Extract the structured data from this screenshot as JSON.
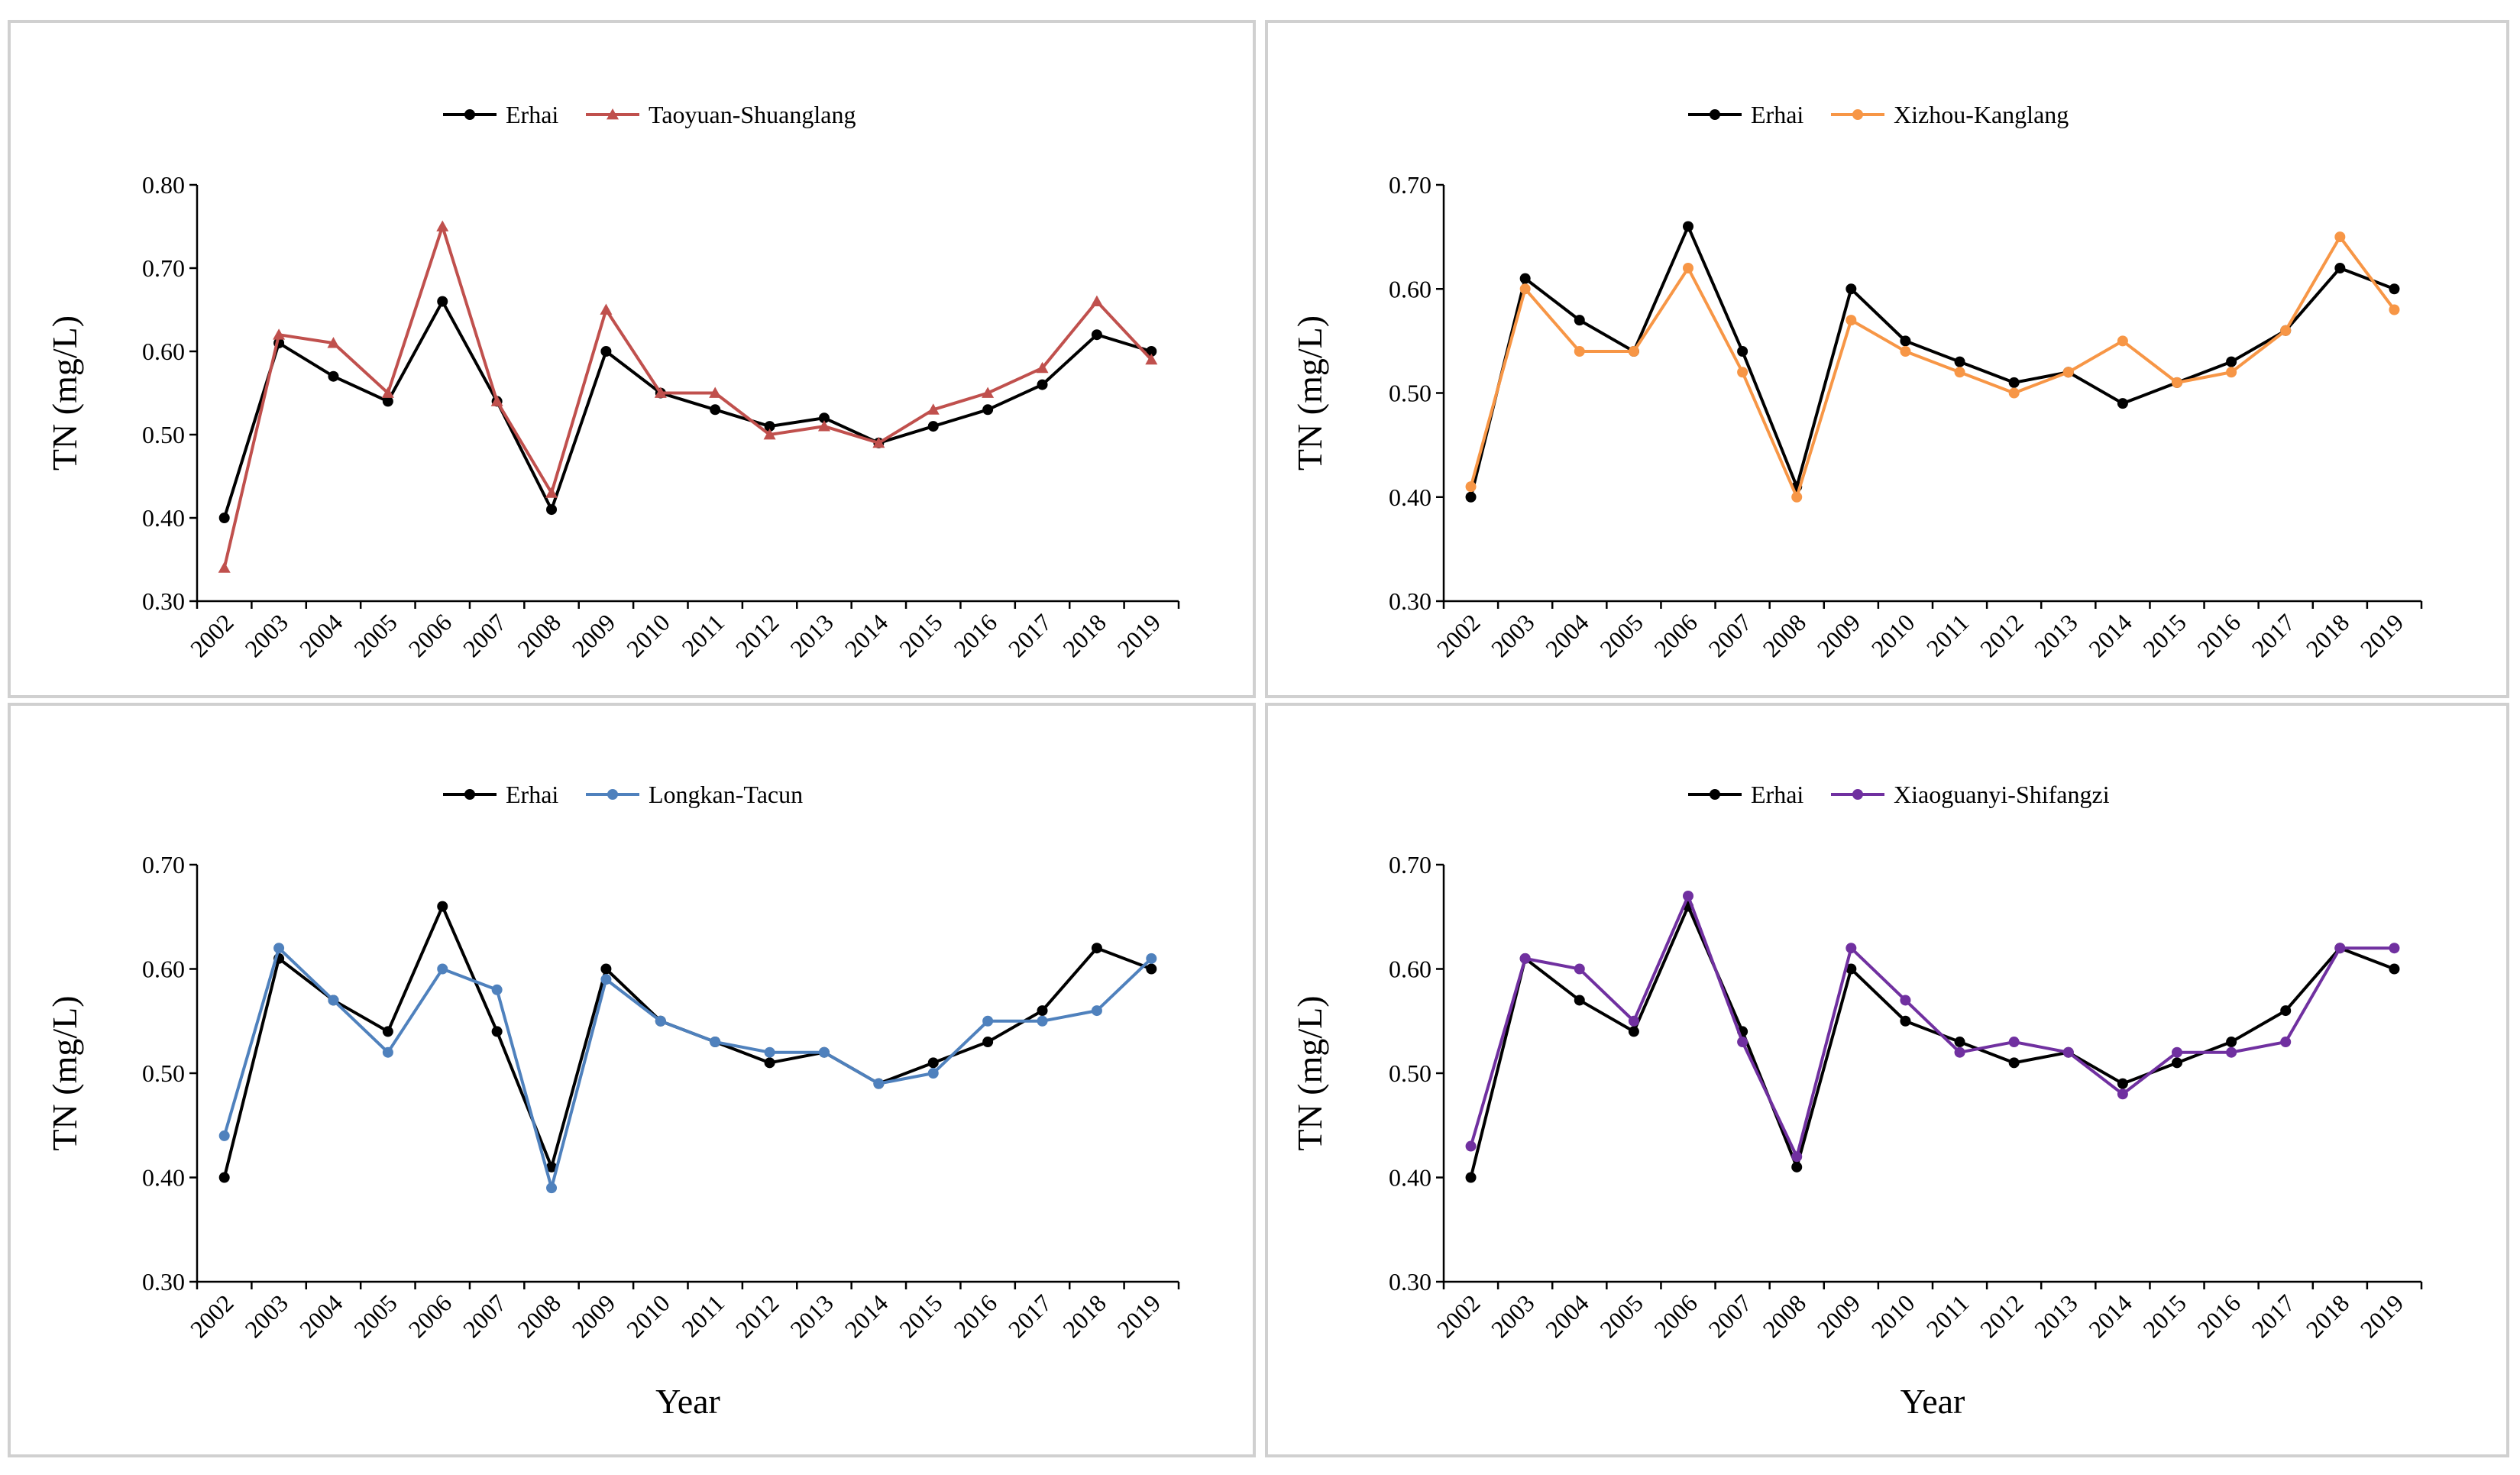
{
  "chart_data": [
    {
      "type": "line",
      "categories": [
        "2002",
        "2003",
        "2004",
        "2005",
        "2006",
        "2007",
        "2008",
        "2009",
        "2010",
        "2011",
        "2012",
        "2013",
        "2014",
        "2015",
        "2016",
        "2017",
        "2018",
        "2019"
      ],
      "ylabel": "TN (mg/L)",
      "xlabel": "",
      "ylim": [
        0.3,
        0.8
      ],
      "yticks": [
        "0.30",
        "0.40",
        "0.50",
        "0.60",
        "0.70",
        "0.80"
      ],
      "legend_position": "top-center",
      "series": [
        {
          "name": "Erhai",
          "color": "#000000",
          "marker": "circle",
          "values": [
            0.4,
            0.61,
            0.57,
            0.54,
            0.66,
            0.54,
            0.41,
            0.6,
            0.55,
            0.53,
            0.51,
            0.52,
            0.49,
            0.51,
            0.53,
            0.56,
            0.62,
            0.6
          ]
        },
        {
          "name": "Taoyuan-Shuanglang",
          "color": "#c0504d",
          "marker": "triangle",
          "values": [
            0.34,
            0.62,
            0.61,
            0.55,
            0.75,
            0.54,
            0.43,
            0.65,
            0.55,
            0.55,
            0.5,
            0.51,
            0.49,
            0.53,
            0.55,
            0.58,
            0.66,
            0.59
          ]
        }
      ]
    },
    {
      "type": "line",
      "categories": [
        "2002",
        "2003",
        "2004",
        "2005",
        "2006",
        "2007",
        "2008",
        "2009",
        "2010",
        "2011",
        "2012",
        "2013",
        "2014",
        "2015",
        "2016",
        "2017",
        "2018",
        "2019"
      ],
      "ylabel": "TN (mg/L)",
      "xlabel": "",
      "ylim": [
        0.3,
        0.7
      ],
      "yticks": [
        "0.30",
        "0.40",
        "0.50",
        "0.60",
        "0.70"
      ],
      "legend_position": "top-center",
      "series": [
        {
          "name": "Erhai",
          "color": "#000000",
          "marker": "circle",
          "values": [
            0.4,
            0.61,
            0.57,
            0.54,
            0.66,
            0.54,
            0.41,
            0.6,
            0.55,
            0.53,
            0.51,
            0.52,
            0.49,
            0.51,
            0.53,
            0.56,
            0.62,
            0.6
          ]
        },
        {
          "name": "Xizhou-Kanglang",
          "color": "#f79646",
          "marker": "circle",
          "values": [
            0.41,
            0.6,
            0.54,
            0.54,
            0.62,
            0.52,
            0.4,
            0.57,
            0.54,
            0.52,
            0.5,
            0.52,
            0.55,
            0.51,
            0.52,
            0.56,
            0.65,
            0.58
          ]
        }
      ]
    },
    {
      "type": "line",
      "categories": [
        "2002",
        "2003",
        "2004",
        "2005",
        "2006",
        "2007",
        "2008",
        "2009",
        "2010",
        "2011",
        "2012",
        "2013",
        "2014",
        "2015",
        "2016",
        "2017",
        "2018",
        "2019"
      ],
      "ylabel": "TN (mg/L)",
      "xlabel": "Year",
      "ylim": [
        0.3,
        0.7
      ],
      "yticks": [
        "0.30",
        "0.40",
        "0.50",
        "0.60",
        "0.70"
      ],
      "legend_position": "top-center",
      "series": [
        {
          "name": "Erhai",
          "color": "#000000",
          "marker": "circle",
          "values": [
            0.4,
            0.61,
            0.57,
            0.54,
            0.66,
            0.54,
            0.41,
            0.6,
            0.55,
            0.53,
            0.51,
            0.52,
            0.49,
            0.51,
            0.53,
            0.56,
            0.62,
            0.6
          ]
        },
        {
          "name": "Longkan-Tacun",
          "color": "#4f81bd",
          "marker": "circle",
          "values": [
            0.44,
            0.62,
            0.57,
            0.52,
            0.6,
            0.58,
            0.39,
            0.59,
            0.55,
            0.53,
            0.52,
            0.52,
            0.49,
            0.5,
            0.55,
            0.55,
            0.56,
            0.61
          ]
        }
      ]
    },
    {
      "type": "line",
      "categories": [
        "2002",
        "2003",
        "2004",
        "2005",
        "2006",
        "2007",
        "2008",
        "2009",
        "2010",
        "2011",
        "2012",
        "2013",
        "2014",
        "2015",
        "2016",
        "2017",
        "2018",
        "2019"
      ],
      "ylabel": "TN (mg/L)",
      "xlabel": "Year",
      "ylim": [
        0.3,
        0.7
      ],
      "yticks": [
        "0.30",
        "0.40",
        "0.50",
        "0.60",
        "0.70"
      ],
      "legend_position": "top-center",
      "series": [
        {
          "name": "Erhai",
          "color": "#000000",
          "marker": "circle",
          "values": [
            0.4,
            0.61,
            0.57,
            0.54,
            0.66,
            0.54,
            0.41,
            0.6,
            0.55,
            0.53,
            0.51,
            0.52,
            0.49,
            0.51,
            0.53,
            0.56,
            0.62,
            0.6
          ]
        },
        {
          "name": "Xiaoguanyi-Shifangzi",
          "color": "#7030a0",
          "marker": "circle",
          "values": [
            0.43,
            0.61,
            0.6,
            0.55,
            0.67,
            0.53,
            0.42,
            0.62,
            0.57,
            0.52,
            0.53,
            0.52,
            0.48,
            0.52,
            0.52,
            0.53,
            0.62,
            0.62
          ]
        }
      ]
    }
  ]
}
